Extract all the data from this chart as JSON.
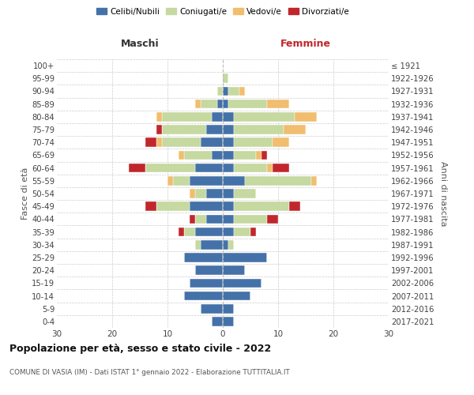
{
  "age_groups": [
    "0-4",
    "5-9",
    "10-14",
    "15-19",
    "20-24",
    "25-29",
    "30-34",
    "35-39",
    "40-44",
    "45-49",
    "50-54",
    "55-59",
    "60-64",
    "65-69",
    "70-74",
    "75-79",
    "80-84",
    "85-89",
    "90-94",
    "95-99",
    "100+"
  ],
  "birth_years": [
    "2017-2021",
    "2012-2016",
    "2007-2011",
    "2002-2006",
    "1997-2001",
    "1992-1996",
    "1987-1991",
    "1982-1986",
    "1977-1981",
    "1972-1976",
    "1967-1971",
    "1962-1966",
    "1957-1961",
    "1952-1956",
    "1947-1951",
    "1942-1946",
    "1937-1941",
    "1932-1936",
    "1927-1931",
    "1922-1926",
    "≤ 1921"
  ],
  "colors": {
    "celibe": "#4472a8",
    "coniugato": "#c5d9a0",
    "vedovo": "#f0be6e",
    "divorziato": "#c0272d"
  },
  "males": {
    "celibe": [
      2,
      4,
      7,
      6,
      5,
      7,
      4,
      5,
      3,
      6,
      3,
      6,
      5,
      2,
      4,
      3,
      2,
      1,
      0,
      0,
      0
    ],
    "coniugato": [
      0,
      0,
      0,
      0,
      0,
      0,
      1,
      2,
      2,
      6,
      2,
      3,
      9,
      5,
      7,
      8,
      9,
      3,
      1,
      0,
      0
    ],
    "vedovo": [
      0,
      0,
      0,
      0,
      0,
      0,
      0,
      0,
      0,
      0,
      1,
      1,
      0,
      1,
      1,
      0,
      1,
      1,
      0,
      0,
      0
    ],
    "divorziato": [
      0,
      0,
      0,
      0,
      0,
      0,
      0,
      1,
      1,
      2,
      0,
      0,
      3,
      0,
      2,
      1,
      0,
      0,
      0,
      0,
      0
    ]
  },
  "females": {
    "nubile": [
      2,
      2,
      5,
      7,
      4,
      8,
      1,
      2,
      2,
      2,
      2,
      4,
      2,
      2,
      2,
      2,
      2,
      1,
      1,
      0,
      0
    ],
    "coniugata": [
      0,
      0,
      0,
      0,
      0,
      0,
      1,
      3,
      6,
      10,
      4,
      12,
      6,
      4,
      7,
      9,
      11,
      7,
      2,
      1,
      0
    ],
    "vedova": [
      0,
      0,
      0,
      0,
      0,
      0,
      0,
      0,
      0,
      0,
      0,
      1,
      1,
      1,
      3,
      4,
      4,
      4,
      1,
      0,
      0
    ],
    "divorziata": [
      0,
      0,
      0,
      0,
      0,
      0,
      0,
      1,
      2,
      2,
      0,
      0,
      3,
      1,
      0,
      0,
      0,
      0,
      0,
      0,
      0
    ]
  },
  "xlim": 30,
  "title": "Popolazione per età, sesso e stato civile - 2022",
  "subtitle": "COMUNE DI VASIA (IM) - Dati ISTAT 1° gennaio 2022 - Elaborazione TUTTITALIA.IT",
  "ylabel_left": "Fasce di età",
  "ylabel_right": "Anni di nascita",
  "header_left": "Maschi",
  "header_right": "Femmine",
  "legend_labels": [
    "Celibi/Nubili",
    "Coniugati/e",
    "Vedovi/e",
    "Divorziati/e"
  ]
}
